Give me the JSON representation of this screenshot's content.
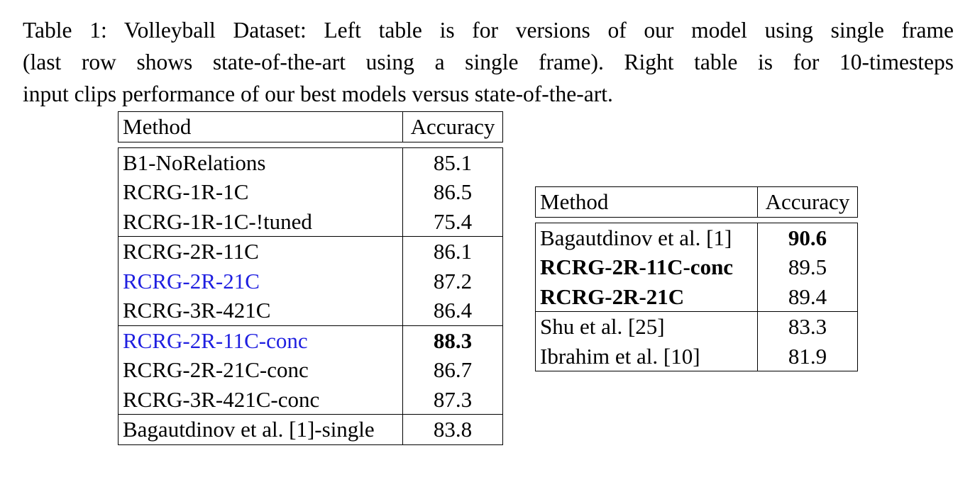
{
  "caption": {
    "lines": [
      "Table 1: Volleyball Dataset: Left table is for versions of our model using single frame",
      "(last row shows state-of-the-art using a single frame). Right table is for 10-timesteps",
      "input clips performance of our best models versus state-of-the-art."
    ]
  },
  "left_table": {
    "header": {
      "method": "Method",
      "accuracy": "Accuracy"
    },
    "groups": [
      [
        {
          "method": "B1-NoRelations",
          "accuracy": "85.1"
        },
        {
          "method": "RCRG-1R-1C",
          "accuracy": "86.5"
        },
        {
          "method": "RCRG-1R-1C-!tuned",
          "accuracy": "75.4"
        }
      ],
      [
        {
          "method": "RCRG-2R-11C",
          "accuracy": "86.1"
        },
        {
          "method": "RCRG-2R-21C",
          "accuracy": "87.2"
        },
        {
          "method": "RCRG-3R-421C",
          "accuracy": "86.4"
        }
      ],
      [
        {
          "method": "RCRG-2R-11C-conc",
          "accuracy": "88.3"
        },
        {
          "method": "RCRG-2R-21C-conc",
          "accuracy": "86.7"
        },
        {
          "method": "RCRG-3R-421C-conc",
          "accuracy": "87.3"
        }
      ],
      [
        {
          "method": "Bagautdinov et al. [1]-single",
          "accuracy": "83.8"
        }
      ]
    ]
  },
  "right_table": {
    "header": {
      "method": "Method",
      "accuracy": "Accuracy"
    },
    "groups": [
      [
        {
          "method": "Bagautdinov et al. [1]",
          "accuracy": "90.6"
        },
        {
          "method": "RCRG-2R-11C-conc",
          "accuracy": "89.5"
        },
        {
          "method": "RCRG-2R-21C",
          "accuracy": "89.4"
        }
      ],
      [
        {
          "method": "Shu et al. [25]",
          "accuracy": "83.3"
        },
        {
          "method": "Ibrahim et al. [10]",
          "accuracy": "81.9"
        }
      ]
    ]
  },
  "colors": {
    "highlight_text": "#1f1fe0",
    "text": "#000000"
  }
}
